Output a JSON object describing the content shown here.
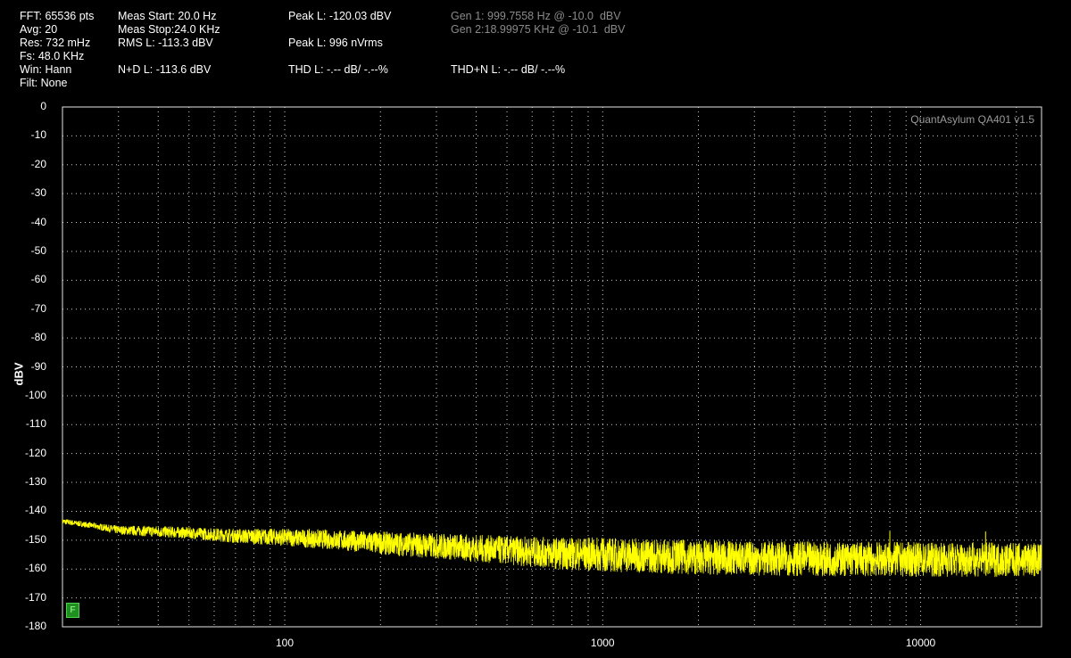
{
  "header": {
    "col1": {
      "fft": "FFT: 65536 pts",
      "avg": "Avg: 20",
      "res": "Res: 732 mHz",
      "fs": "Fs: 48.0 KHz",
      "win": "Win: Hann",
      "filt": "Filt: None"
    },
    "col2": {
      "meas_start": "Meas Start: 20.0 Hz",
      "meas_stop": "Meas Stop:24.0 KHz",
      "rms": "RMS L: -113.3 dBV",
      "nd": "N+D L: -113.6 dBV"
    },
    "col3": {
      "peak_dbv": "Peak L: -120.03 dBV",
      "peak_vrms": "Peak L: 996 nVrms",
      "thd": "THD L: -.-- dB/ -.--%"
    },
    "col4": {
      "gen1": "Gen 1: 999.7558 Hz @ -10.0  dBV",
      "gen2": "Gen 2:18.99975 KHz @ -10.1  dBV",
      "thdn": "THD+N L: -.-- dB/ -.--%"
    }
  },
  "plot": {
    "watermark": "QuantAsylum QA401 v1.5",
    "badge": "F",
    "trace_color": "#ffff00",
    "grid_color": "#cfcfcf",
    "background": "#000000"
  },
  "chart_data": {
    "type": "line",
    "title": "",
    "xlabel": "",
    "ylabel": "dBV",
    "x_scale": "log",
    "xlim": [
      20,
      24000
    ],
    "ylim": [
      -180,
      0
    ],
    "x_ticks": [
      {
        "value": 100,
        "label": "100"
      },
      {
        "value": 1000,
        "label": "1000"
      },
      {
        "value": 10000,
        "label": "10000"
      }
    ],
    "y_ticks": [
      "0",
      "-10",
      "-20",
      "-30",
      "-40",
      "-50",
      "-60",
      "-70",
      "-80",
      "-90",
      "-100",
      "-110",
      "-120",
      "-130",
      "-140",
      "-150",
      "-160",
      "-170",
      "-180"
    ],
    "grid": true,
    "series": [
      {
        "color": "#ffff00",
        "x": [
          20,
          25,
          30,
          40,
          50,
          70,
          100,
          150,
          200,
          300,
          500,
          700,
          1000,
          1500,
          2000,
          3000,
          5000,
          7000,
          10000,
          15000,
          20000,
          24000
        ],
        "y": [
          -143.5,
          -145,
          -146.5,
          -147,
          -147.5,
          -148.5,
          -149,
          -150,
          -151,
          -152,
          -153.5,
          -154.5,
          -155,
          -155.5,
          -156,
          -156.3,
          -156.5,
          -156.6,
          -156.7,
          -156.7,
          -156.8,
          -156.8
        ],
        "noise_band_db": [
          1,
          1,
          1.5,
          2,
          2,
          2.5,
          3,
          3.5,
          4,
          4.5,
          5,
          5.5,
          6,
          6,
          6,
          6,
          6,
          6,
          6,
          6,
          6,
          6
        ],
        "spurs": [
          {
            "x": 999.76,
            "y": -150
          },
          {
            "x": 2000,
            "y": -152
          },
          {
            "x": 8000,
            "y": -147
          },
          {
            "x": 16000,
            "y": -147
          }
        ]
      }
    ]
  }
}
